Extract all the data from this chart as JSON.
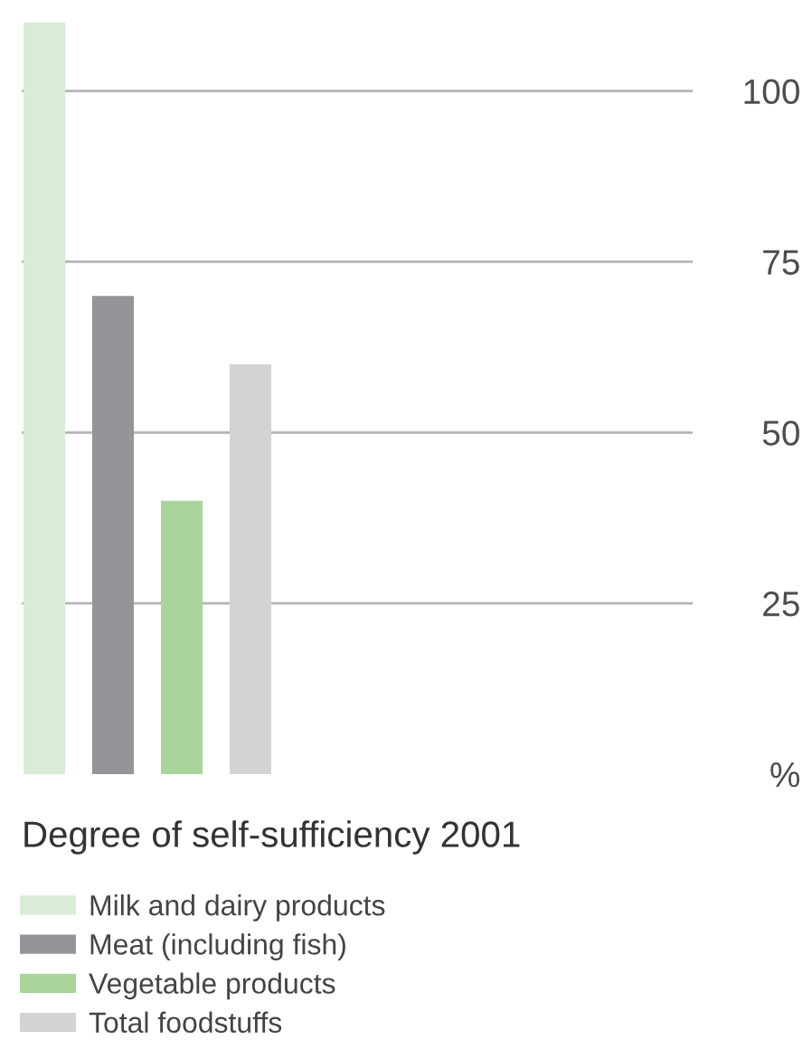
{
  "chart_data": {
    "type": "bar",
    "title": "Degree of self-sufficiency 2001",
    "categories": [
      null
    ],
    "series": [
      {
        "name": "Milk and dairy products",
        "color": "#d9ecd6",
        "values": [
          110
        ]
      },
      {
        "name": "Meat (including fish)",
        "color": "#939598",
        "values": [
          70
        ]
      },
      {
        "name": "Vegetable products",
        "color": "#a9d59a",
        "values": [
          40
        ]
      },
      {
        "name": "Total foodstuffs",
        "color": "#d1d3d4",
        "values": [
          60
        ]
      }
    ],
    "ylim": [
      0,
      110
    ],
    "yticks": [
      {
        "value": 0,
        "label": "%"
      },
      25,
      50,
      75,
      100
    ],
    "grid": "y",
    "legend": "bottom left"
  }
}
